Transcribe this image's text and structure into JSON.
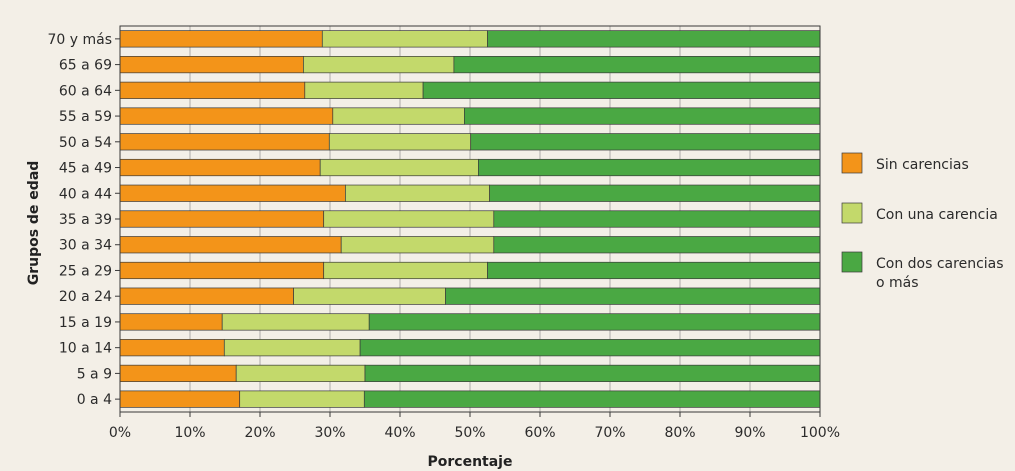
{
  "colors": {
    "background": "#f3efe7",
    "sin_carencias": "#f39419",
    "con_una_carencia": "#c3d96b",
    "con_dos_carencias": "#4aa843",
    "gridline": "#9a9a9a",
    "bar_outline": "#3a3a3a"
  },
  "chart_data": {
    "type": "bar",
    "orientation": "horizontal",
    "stacked": true,
    "title": "",
    "xlabel": "Porcentaje",
    "ylabel": "Grupos de edad",
    "xlim": [
      0,
      100
    ],
    "x_ticks": [
      "0%",
      "10%",
      "20%",
      "30%",
      "40%",
      "50%",
      "60%",
      "70%",
      "80%",
      "90%",
      "100%"
    ],
    "grid": true,
    "legend_position": "right",
    "categories": [
      "0 a 4",
      "5 a 9",
      "10 a 14",
      "15 a 19",
      "20 a 24",
      "25 a 29",
      "30 a 34",
      "35 a 39",
      "40 a 44",
      "45 a 49",
      "50 a 54",
      "55 a 59",
      "60 a 64",
      "65 a 69",
      "70 y más"
    ],
    "series": [
      {
        "name": "Sin carencias",
        "legend_lines": [
          "Sin carencias"
        ],
        "values": [
          17.1,
          16.6,
          14.9,
          14.6,
          24.8,
          29.1,
          31.6,
          29.1,
          32.2,
          28.6,
          29.9,
          30.4,
          26.4,
          26.2,
          28.9
        ]
      },
      {
        "name": "Con una carencia",
        "legend_lines": [
          "Con una carencia"
        ],
        "values": [
          17.8,
          18.4,
          19.4,
          21.0,
          21.7,
          23.4,
          21.8,
          24.3,
          20.6,
          22.6,
          20.2,
          18.8,
          16.9,
          21.5,
          23.6
        ]
      },
      {
        "name": "Con dos carencias o más",
        "legend_lines": [
          "Con dos carencias",
          "o más"
        ],
        "values": [
          65.1,
          65.0,
          65.7,
          64.4,
          53.5,
          47.5,
          46.6,
          46.6,
          47.2,
          48.8,
          49.9,
          50.8,
          56.7,
          52.3,
          47.5
        ]
      }
    ]
  }
}
